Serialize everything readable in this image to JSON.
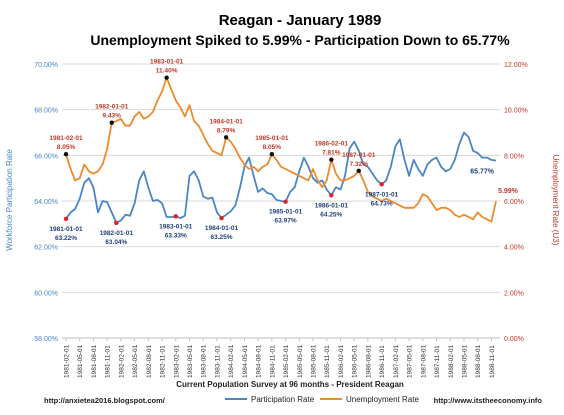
{
  "chart_data": {
    "type": "line",
    "title": "Reagan - January 1989",
    "subtitle": "Unemployment Spiked to 5.99% - Participation Down to  65.77%",
    "xlabel": "Current Population Survey at 96 months - President Reagan",
    "ylabel_left": "Workforce Participation Rate",
    "ylabel_right": "Unemployment Rate (U3)",
    "ylim_left": [
      58,
      70
    ],
    "ylim_right": [
      0,
      12
    ],
    "yticks_left": [
      "58.00%",
      "60.00%",
      "62.00%",
      "64.00%",
      "66.00%",
      "68.00%",
      "70.00%"
    ],
    "yticks_right": [
      "0.00%",
      "2.00%",
      "4.00%",
      "6.00%",
      "8.00%",
      "10.00%",
      "12.00%"
    ],
    "x_tick_labels": [
      "1981-02-01",
      "1981-05-01",
      "1981-08-01",
      "1981-11-01",
      "1982-02-01",
      "1982-05-01",
      "1982-08-01",
      "1982-11-01",
      "1983-02-01",
      "1983-05-01",
      "1983-08-01",
      "1983-11-01",
      "1984-02-01",
      "1984-05-01",
      "1984-08-01",
      "1984-11-01",
      "1985-02-01",
      "1985-05-01",
      "1985-08-01",
      "1985-11-01",
      "1986-02-01",
      "1986-05-01",
      "1986-08-01",
      "1986-11-01",
      "1987-02-01",
      "1987-05-01",
      "1987-08-01",
      "1987-11-01",
      "1988-02-01",
      "1988-05-01",
      "1988-08-01",
      "1988-11-01"
    ],
    "series": [
      {
        "name": "Participation Rate",
        "axis": "left",
        "color": "#4a86c5",
        "values": [
          63.22,
          63.5,
          63.65,
          64.1,
          64.8,
          65.0,
          64.6,
          63.5,
          64.0,
          63.95,
          63.5,
          63.04,
          63.15,
          63.4,
          63.35,
          63.9,
          64.9,
          65.3,
          64.6,
          64.0,
          64.05,
          63.9,
          63.3,
          63.3,
          63.33,
          63.25,
          63.35,
          65.1,
          65.3,
          64.9,
          64.2,
          64.1,
          64.15,
          63.5,
          63.25,
          63.4,
          63.55,
          63.8,
          64.55,
          65.5,
          65.9,
          65.1,
          64.4,
          64.55,
          64.35,
          64.3,
          64.05,
          64.0,
          63.97,
          64.4,
          64.6,
          65.3,
          65.9,
          65.5,
          65.0,
          64.8,
          64.9,
          64.5,
          64.25,
          64.6,
          64.5,
          65.1,
          66.3,
          66.6,
          66.2,
          65.6,
          65.5,
          65.2,
          64.9,
          64.73,
          64.9,
          65.5,
          66.4,
          66.7,
          65.8,
          65.1,
          65.8,
          65.4,
          65.1,
          65.6,
          65.8,
          65.9,
          65.5,
          65.3,
          65.4,
          65.8,
          66.5,
          67.0,
          66.8,
          66.2,
          66.1,
          65.9,
          65.9,
          65.8,
          65.77
        ]
      },
      {
        "name": "Unemployment Rate",
        "axis": "right",
        "color": "#ee8a2c",
        "values": [
          8.05,
          7.4,
          6.9,
          7.0,
          7.6,
          7.3,
          7.2,
          7.3,
          7.6,
          8.3,
          9.43,
          9.5,
          9.6,
          9.3,
          9.3,
          9.7,
          9.9,
          9.6,
          9.7,
          9.9,
          10.4,
          10.8,
          11.4,
          10.9,
          10.4,
          10.1,
          9.7,
          10.2,
          9.5,
          9.3,
          8.9,
          8.5,
          8.2,
          8.1,
          8.0,
          8.79,
          8.6,
          8.3,
          7.9,
          7.6,
          7.4,
          7.5,
          7.3,
          7.5,
          7.6,
          8.05,
          7.8,
          7.5,
          7.4,
          7.3,
          7.2,
          7.1,
          7.0,
          6.9,
          7.4,
          6.9,
          6.6,
          6.9,
          7.81,
          7.2,
          6.9,
          6.9,
          7.0,
          7.1,
          7.32,
          6.9,
          6.4,
          6.2,
          6.1,
          6.0,
          6.1,
          6.0,
          5.9,
          5.8,
          5.7,
          5.7,
          5.7,
          5.9,
          6.3,
          6.2,
          5.9,
          5.6,
          5.7,
          5.7,
          5.6,
          5.4,
          5.3,
          5.4,
          5.3,
          5.2,
          5.5,
          5.3,
          5.2,
          5.1,
          5.99
        ]
      }
    ],
    "annotations_participation": [
      {
        "date": "1981-01-01",
        "value": "63.22%",
        "index": 0
      },
      {
        "date": "1982-01-01",
        "value": "63.04%",
        "index": 11
      },
      {
        "date": "1983-01-01",
        "value": "63.33%",
        "index": 24
      },
      {
        "date": "1984-01-01",
        "value": "63.25%",
        "index": 34
      },
      {
        "date": "1985-01-01",
        "value": "63.97%",
        "index": 48
      },
      {
        "date": "1986-01-01",
        "value": "64.25%",
        "index": 58
      },
      {
        "date": "1987-01-01",
        "value": "64.73%",
        "index": 69
      }
    ],
    "annotations_unemployment": [
      {
        "date": "1981-02-01",
        "value": "8.05%",
        "index": 0
      },
      {
        "date": "1982-01-01",
        "value": "9.43%",
        "index": 10
      },
      {
        "date": "1983-01-01",
        "value": "11.40%",
        "index": 22
      },
      {
        "date": "1984-01-01",
        "value": "8.79%",
        "index": 35
      },
      {
        "date": "1985-01-01",
        "value": "8.05%",
        "index": 45
      },
      {
        "date": "1986-02-01",
        "value": "7.81%",
        "index": 58
      },
      {
        "date": "1987-01-01",
        "value": "7.32%",
        "index": 64
      }
    ],
    "end_labels": {
      "participation": "65.77%",
      "unemployment": "5.99%"
    },
    "legend_position": "bottom"
  },
  "footer": {
    "left_url": "http://anxietea2016.blogspot.com/",
    "right_url": "http://www.itstheeconomy.info"
  }
}
